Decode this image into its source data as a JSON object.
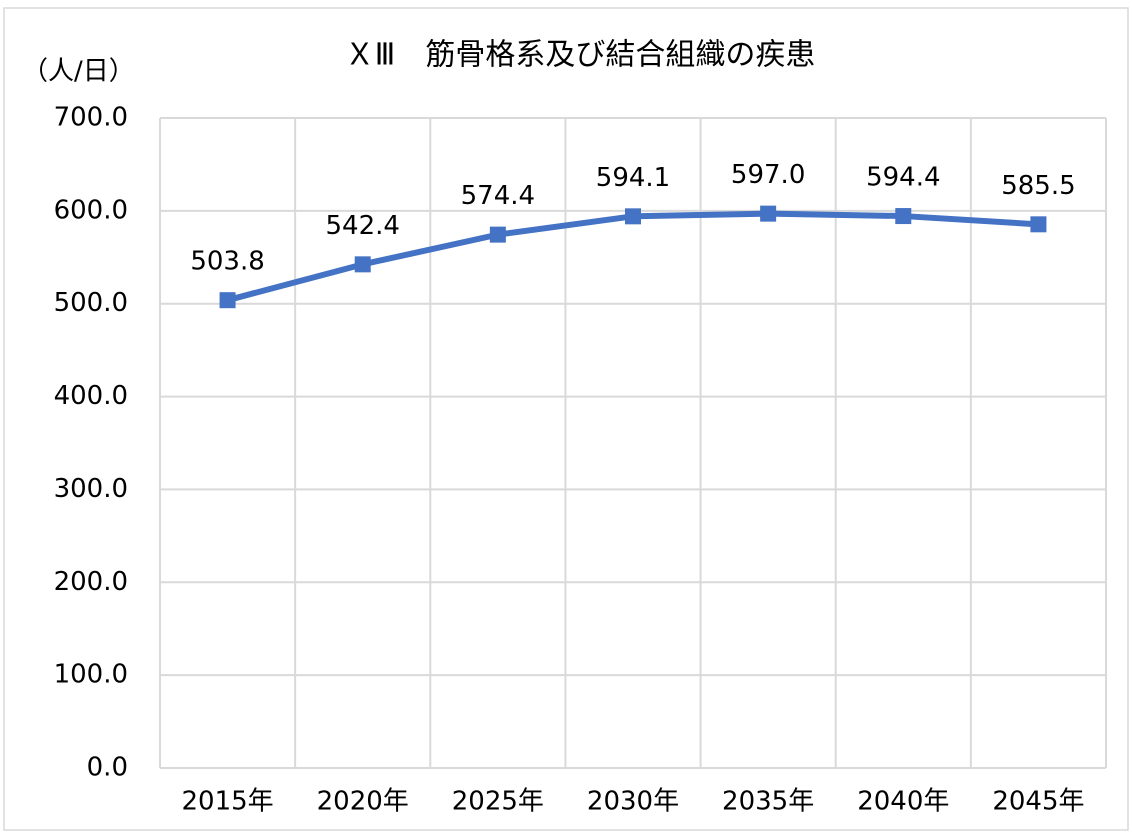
{
  "chart_data": {
    "type": "line",
    "title": "ＸⅢ　筋骨格系及び結合組織の疾患",
    "y_label": "（人/日）",
    "categories": [
      "2015年",
      "2020年",
      "2025年",
      "2030年",
      "2035年",
      "2040年",
      "2045年"
    ],
    "values": [
      503.8,
      542.4,
      574.4,
      594.1,
      597.0,
      594.4,
      585.5
    ],
    "value_labels": [
      "503.8",
      "542.4",
      "574.4",
      "594.1",
      "597.0",
      "594.4",
      "585.5"
    ],
    "color": "#4472c4",
    "ylim": [
      0,
      700
    ],
    "yticks": [
      {
        "value": 0,
        "label": "0.0"
      },
      {
        "value": 100,
        "label": "100.0"
      },
      {
        "value": 200,
        "label": "200.0"
      },
      {
        "value": 300,
        "label": "300.0"
      },
      {
        "value": 400,
        "label": "400.0"
      },
      {
        "value": 500,
        "label": "500.0"
      },
      {
        "value": 600,
        "label": "600.0"
      },
      {
        "value": 700,
        "label": "700.0"
      }
    ],
    "grid": true
  }
}
